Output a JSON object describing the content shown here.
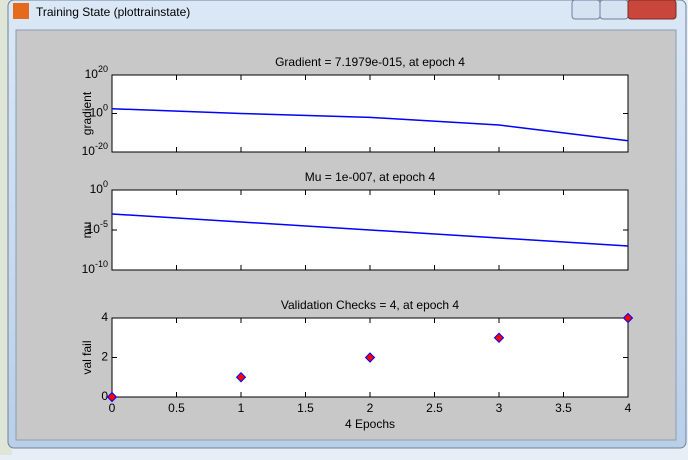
{
  "window": {
    "title": "Training State (plottrainstate)"
  },
  "chart_data": [
    {
      "type": "line",
      "title": "Gradient = 7.1979e-015, at epoch 4",
      "ylabel": "gradient",
      "ylog": true,
      "x": [
        0,
        1,
        2,
        3,
        4
      ],
      "series": [
        {
          "color": "#0000ff",
          "values": [
            300,
            1,
            0.01,
            1e-06,
            7.1979e-15
          ]
        }
      ],
      "xlim": [
        0,
        4
      ],
      "xticks": [
        0,
        0.5,
        1,
        1.5,
        2,
        2.5,
        3,
        3.5,
        4
      ],
      "xtick_labels": false,
      "ylim": [
        1e-20,
        1e+20
      ],
      "yticks": [
        {
          "value": 1e-20,
          "label": "10^-20"
        },
        {
          "value": 1,
          "label": "10^0"
        },
        {
          "value": 1e+20,
          "label": "10^20"
        }
      ]
    },
    {
      "type": "line",
      "title": "Mu = 1e-007, at epoch 4",
      "ylabel": "mu",
      "ylog": true,
      "x": [
        0,
        1,
        2,
        3,
        4
      ],
      "series": [
        {
          "color": "#0000ff",
          "values": [
            0.001,
            0.0001,
            1e-05,
            1e-06,
            1e-07
          ]
        }
      ],
      "xlim": [
        0,
        4
      ],
      "xticks": [
        0,
        0.5,
        1,
        1.5,
        2,
        2.5,
        3,
        3.5,
        4
      ],
      "xtick_labels": false,
      "ylim": [
        1e-10,
        1
      ],
      "yticks": [
        {
          "value": 1e-10,
          "label": "10^-10"
        },
        {
          "value": 1e-05,
          "label": "10^-5"
        },
        {
          "value": 1,
          "label": "10^0"
        }
      ]
    },
    {
      "type": "scatter",
      "title": "Validation Checks = 4, at epoch 4",
      "ylabel": "val fail",
      "xlabel": "4 Epochs",
      "x": [
        0,
        1,
        2,
        3,
        4
      ],
      "series": [
        {
          "color": "#ff0000",
          "edge_color": "#0000ff",
          "values": [
            0,
            1,
            2,
            3,
            4
          ]
        }
      ],
      "xlim": [
        0,
        4
      ],
      "xticks": [
        0,
        0.5,
        1,
        1.5,
        2,
        2.5,
        3,
        3.5,
        4
      ],
      "ylim": [
        0,
        4
      ],
      "yticks": [
        0,
        2,
        4
      ]
    }
  ]
}
